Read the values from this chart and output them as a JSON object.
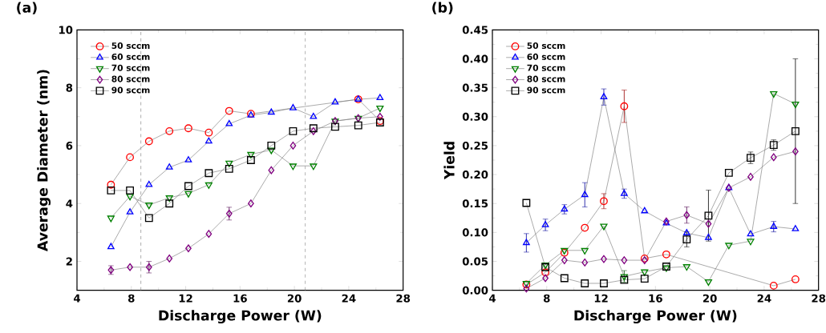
{
  "chart_data": [
    {
      "type": "line",
      "title": "(a)",
      "xlabel": "Discharge Power (W)",
      "ylabel": "Average Diameter (nm)",
      "x": [
        6.5,
        7.9,
        9.3,
        10.8,
        12.2,
        13.7,
        15.2,
        16.8,
        18.3,
        19.9,
        21.4,
        23.0,
        24.7,
        26.3
      ],
      "xlim": [
        4,
        28
      ],
      "xticks": [
        4,
        8,
        12,
        16,
        20,
        24,
        28
      ],
      "ylim": [
        1,
        10
      ],
      "yticks": [
        2,
        4,
        6,
        8,
        10
      ],
      "grid": false,
      "legend": "top left",
      "line_style": "solid",
      "ref_lines": [
        {
          "axis": "x",
          "value": 8.7,
          "color": "#999999",
          "line_style": "dashed"
        },
        {
          "axis": "x",
          "value": 20.8,
          "color": "#999999",
          "line_style": "dashed"
        }
      ],
      "series": [
        {
          "name": "50 sccm",
          "color": "#ff0000",
          "marker": "circle",
          "x": [
            6.5,
            7.9,
            9.3,
            10.8,
            12.2,
            13.7,
            15.2,
            16.8,
            24.7,
            26.3
          ],
          "values": [
            4.65,
            5.6,
            6.15,
            6.5,
            6.6,
            6.45,
            7.2,
            7.1,
            7.6,
            6.85
          ]
        },
        {
          "name": "60 sccm",
          "color": "#0000ff",
          "marker": "triangle",
          "values": [
            2.5,
            3.7,
            4.65,
            5.25,
            5.5,
            6.15,
            6.75,
            7.05,
            7.15,
            7.3,
            7.0,
            7.5,
            7.6,
            7.65
          ]
        },
        {
          "name": "70 sccm",
          "color": "#008000",
          "marker": "triangle-down",
          "values": [
            3.5,
            4.25,
            3.95,
            4.2,
            4.35,
            4.65,
            5.4,
            5.7,
            5.85,
            5.3,
            5.3,
            6.85,
            6.95,
            7.3
          ]
        },
        {
          "name": "80 sccm",
          "color": "#800080",
          "marker": "diamond",
          "values": [
            1.7,
            1.8,
            1.8,
            2.1,
            2.45,
            2.95,
            3.65,
            4.0,
            5.15,
            6.0,
            6.5,
            6.85,
            6.95,
            7.0
          ],
          "errors": [
            0.15,
            null,
            0.2,
            null,
            null,
            null,
            0.22,
            null,
            null,
            null,
            null,
            null,
            null,
            null
          ]
        },
        {
          "name": "90 sccm",
          "color": "#000000",
          "marker": "square",
          "values": [
            4.45,
            4.45,
            3.5,
            4.0,
            4.6,
            5.05,
            5.2,
            5.5,
            6.0,
            6.5,
            6.6,
            6.65,
            6.7,
            6.8
          ]
        }
      ]
    },
    {
      "type": "line",
      "title": "(b)",
      "xlabel": "Discharge Power (W)",
      "ylabel": "Yield",
      "x": [
        6.5,
        7.9,
        9.3,
        10.8,
        12.2,
        13.7,
        15.2,
        16.8,
        18.3,
        19.9,
        21.4,
        23.0,
        24.7,
        26.3
      ],
      "xlim": [
        4,
        28
      ],
      "xticks": [
        4,
        8,
        12,
        16,
        20,
        24,
        28
      ],
      "ylim": [
        0,
        0.45
      ],
      "yticks": [
        {
          "value": 0,
          "label": "0.00"
        },
        {
          "value": 0.05,
          "label": "0.05"
        },
        {
          "value": 0.1,
          "label": "0.10"
        },
        {
          "value": 0.15,
          "label": "0.15"
        },
        {
          "value": 0.2,
          "label": "0.20"
        },
        {
          "value": 0.25,
          "label": "0.25"
        },
        {
          "value": 0.3,
          "label": "0.30"
        },
        {
          "value": 0.35,
          "label": "0.35"
        },
        {
          "value": 0.4,
          "label": "0.40"
        },
        {
          "value": 0.45,
          "label": "0.45"
        }
      ],
      "grid": false,
      "legend": "top left",
      "line_style": "solid",
      "series": [
        {
          "name": "50 sccm",
          "color": "#ff0000",
          "marker": "circle",
          "x": [
            6.5,
            7.9,
            9.3,
            10.8,
            12.2,
            13.7,
            15.2,
            16.8,
            24.7,
            26.3
          ],
          "values": [
            0.01,
            0.031,
            0.065,
            0.108,
            0.154,
            0.318,
            0.055,
            0.062,
            0.008,
            0.019
          ],
          "errors": [
            null,
            null,
            null,
            null,
            0.013,
            0.028,
            null,
            null,
            null,
            null
          ]
        },
        {
          "name": "60 sccm",
          "color": "#0000ff",
          "marker": "triangle",
          "values": [
            0.082,
            0.113,
            0.14,
            0.165,
            0.334,
            0.167,
            0.137,
            0.116,
            0.099,
            0.091,
            0.177,
            0.097,
            0.11,
            0.106
          ],
          "errors": [
            0.016,
            0.01,
            0.008,
            0.021,
            0.014,
            0.008,
            null,
            null,
            null,
            null,
            null,
            null,
            0.009,
            null
          ]
        },
        {
          "name": "70 sccm",
          "color": "#008000",
          "marker": "triangle-down",
          "values": [
            0.012,
            0.044,
            0.069,
            0.069,
            0.111,
            0.024,
            0.032,
            0.039,
            0.041,
            0.015,
            0.078,
            0.085,
            0.34,
            0.322
          ],
          "errors": [
            null,
            null,
            null,
            null,
            null,
            0.01,
            null,
            null,
            null,
            null,
            null,
            null,
            null,
            null
          ]
        },
        {
          "name": "80 sccm",
          "color": "#800080",
          "marker": "diamond",
          "values": [
            0.003,
            0.021,
            0.052,
            0.048,
            0.054,
            0.052,
            0.052,
            0.119,
            0.13,
            0.115,
            0.177,
            0.196,
            0.23,
            0.24
          ],
          "errors": [
            null,
            null,
            null,
            null,
            null,
            null,
            null,
            null,
            0.014,
            null,
            null,
            null,
            null,
            null
          ]
        },
        {
          "name": "90 sccm",
          "color": "#000000",
          "marker": "square",
          "values": [
            0.151,
            0.04,
            0.021,
            0.012,
            0.012,
            0.018,
            0.02,
            0.041,
            0.088,
            0.129,
            0.203,
            0.229,
            0.251,
            0.275
          ],
          "errors": [
            null,
            null,
            null,
            null,
            null,
            null,
            null,
            null,
            0.013,
            0.044,
            null,
            0.01,
            0.009,
            0.125
          ]
        }
      ]
    }
  ]
}
